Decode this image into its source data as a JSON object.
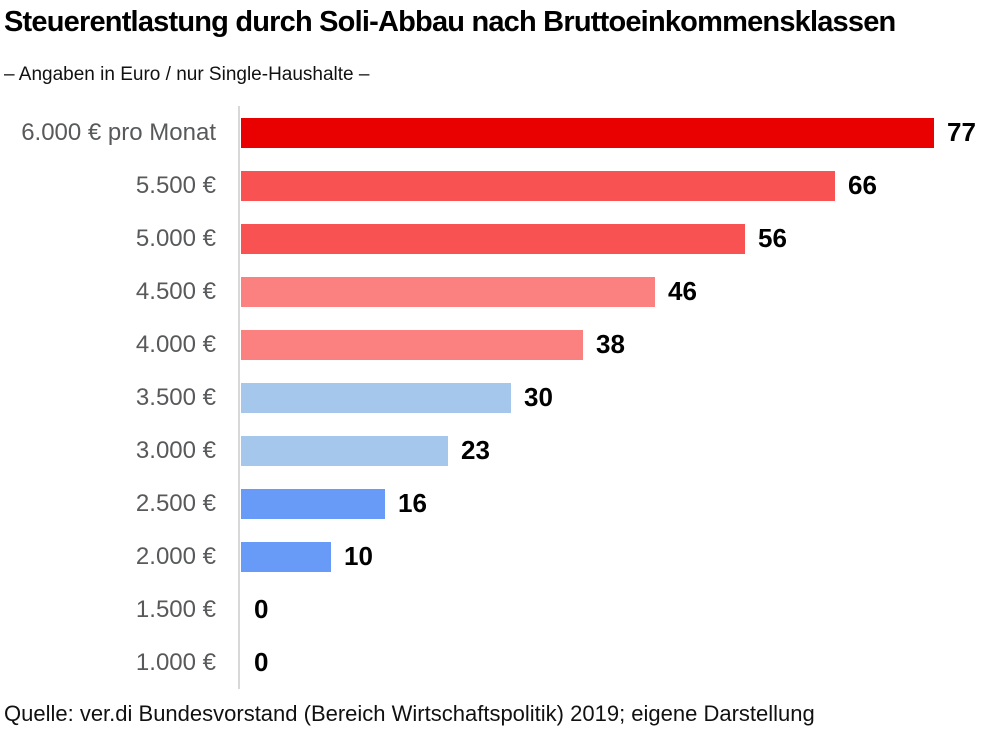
{
  "chart_data": {
    "type": "bar",
    "orientation": "horizontal",
    "title": "Steuerentlastung durch Soli-Abbau nach Bruttoeinkommensklassen",
    "subtitle": "– Angaben in Euro / nur Single-Haushalte –",
    "source": "Quelle: ver.di Bundesvorstand (Bereich Wirtschaftspolitik) 2019; eigene Darstellung",
    "categories": [
      "6.000 € pro Monat",
      "5.500 €",
      "5.000 €",
      "4.500 €",
      "4.000 €",
      "3.500 €",
      "3.000 €",
      "2.500 €",
      "2.000 €",
      "1.500 €",
      "1.000 €"
    ],
    "values": [
      77,
      66,
      56,
      46,
      38,
      30,
      23,
      16,
      10,
      0,
      0
    ],
    "bar_colors": [
      "#e90000",
      "#f95252",
      "#f95252",
      "#fb8181",
      "#fb8181",
      "#a5c7ec",
      "#a5c7ec",
      "#689bf8",
      "#689bf8",
      "#689bf8",
      "#689bf8"
    ],
    "xlim": [
      0,
      77
    ],
    "grid": false,
    "legend": null,
    "value_labels_shown": true,
    "axis_line_color": "#d8d8d8",
    "category_label_color": "#58595b",
    "value_label_color": "#000000"
  }
}
